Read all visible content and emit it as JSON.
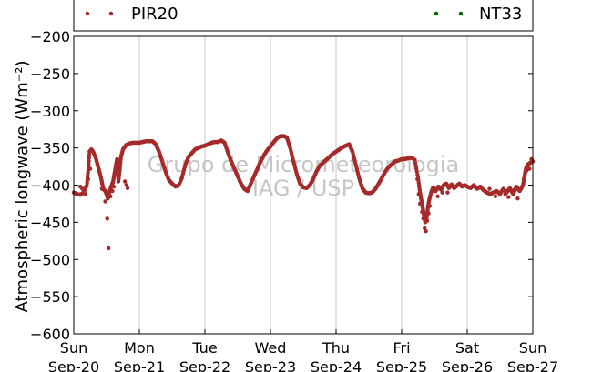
{
  "watermark": {
    "line1": "Grupo de Micrometeorologia",
    "line2": "IAG / USP"
  },
  "chart_data": {
    "type": "scatter",
    "title": "",
    "xlabel": "",
    "ylabel": "Atmospheric longwave (Wm⁻²)",
    "ylim": [
      -600,
      -200
    ],
    "xlim": [
      0,
      7
    ],
    "grid": "vertical",
    "legend_position": "top",
    "y_ticks": [
      {
        "value": -200,
        "label": "−200"
      },
      {
        "value": -250,
        "label": "−250"
      },
      {
        "value": -300,
        "label": "−300"
      },
      {
        "value": -350,
        "label": "−350"
      },
      {
        "value": -400,
        "label": "−400"
      },
      {
        "value": -450,
        "label": "−450"
      },
      {
        "value": -500,
        "label": "−500"
      },
      {
        "value": -550,
        "label": "−550"
      },
      {
        "value": -600,
        "label": "−600"
      }
    ],
    "x_ticks": [
      {
        "value": 0,
        "day": "Sun",
        "date": "Sep-20"
      },
      {
        "value": 1,
        "day": "Mon",
        "date": "Sep-21"
      },
      {
        "value": 2,
        "day": "Tue",
        "date": "Sep-22"
      },
      {
        "value": 3,
        "day": "Wed",
        "date": "Sep-23"
      },
      {
        "value": 4,
        "day": "Thu",
        "date": "Sep-24"
      },
      {
        "value": 5,
        "day": "Fri",
        "date": "Sep-25"
      },
      {
        "value": 6,
        "day": "Sat",
        "date": "Sep-26"
      },
      {
        "value": 7,
        "day": "Sun",
        "date": "Sep-27"
      }
    ],
    "series": [
      {
        "name": "PIR20",
        "color": "#a52a2a",
        "points": [
          [
            0.0,
            -410
          ],
          [
            0.05,
            -412
          ],
          [
            0.1,
            -413
          ],
          [
            0.15,
            -410
          ],
          [
            0.2,
            -400
          ],
          [
            0.22,
            -380
          ],
          [
            0.24,
            -355
          ],
          [
            0.27,
            -352
          ],
          [
            0.3,
            -356
          ],
          [
            0.34,
            -365
          ],
          [
            0.38,
            -378
          ],
          [
            0.42,
            -392
          ],
          [
            0.45,
            -405
          ],
          [
            0.48,
            -408
          ],
          [
            0.5,
            -412
          ],
          [
            0.52,
            -418
          ],
          [
            0.54,
            -410
          ],
          [
            0.56,
            -405
          ],
          [
            0.58,
            -400
          ],
          [
            0.6,
            -395
          ],
          [
            0.62,
            -385
          ],
          [
            0.64,
            -375
          ],
          [
            0.66,
            -365
          ],
          [
            0.68,
            -395
          ],
          [
            0.7,
            -380
          ],
          [
            0.72,
            -362
          ],
          [
            0.75,
            -352
          ],
          [
            0.8,
            -346
          ],
          [
            0.85,
            -344
          ],
          [
            0.9,
            -343
          ],
          [
            0.95,
            -343
          ],
          [
            1.0,
            -343
          ],
          [
            1.05,
            -342
          ],
          [
            1.1,
            -341
          ],
          [
            1.15,
            -341
          ],
          [
            1.2,
            -341
          ],
          [
            1.25,
            -345
          ],
          [
            1.3,
            -355
          ],
          [
            1.35,
            -368
          ],
          [
            1.4,
            -382
          ],
          [
            1.45,
            -393
          ],
          [
            1.5,
            -398
          ],
          [
            1.55,
            -402
          ],
          [
            1.6,
            -400
          ],
          [
            1.65,
            -390
          ],
          [
            1.7,
            -373
          ],
          [
            1.75,
            -362
          ],
          [
            1.8,
            -357
          ],
          [
            1.85,
            -352
          ],
          [
            1.9,
            -350
          ],
          [
            1.95,
            -348
          ],
          [
            2.0,
            -347
          ],
          [
            2.05,
            -345
          ],
          [
            2.1,
            -343
          ],
          [
            2.15,
            -342
          ],
          [
            2.2,
            -342
          ],
          [
            2.25,
            -340
          ],
          [
            2.3,
            -343
          ],
          [
            2.35,
            -356
          ],
          [
            2.4,
            -368
          ],
          [
            2.45,
            -378
          ],
          [
            2.5,
            -388
          ],
          [
            2.55,
            -398
          ],
          [
            2.6,
            -405
          ],
          [
            2.65,
            -408
          ],
          [
            2.7,
            -398
          ],
          [
            2.75,
            -388
          ],
          [
            2.8,
            -378
          ],
          [
            2.85,
            -368
          ],
          [
            2.9,
            -360
          ],
          [
            2.95,
            -353
          ],
          [
            3.0,
            -348
          ],
          [
            3.05,
            -342
          ],
          [
            3.1,
            -337
          ],
          [
            3.15,
            -334
          ],
          [
            3.2,
            -334
          ],
          [
            3.25,
            -336
          ],
          [
            3.3,
            -350
          ],
          [
            3.35,
            -368
          ],
          [
            3.4,
            -385
          ],
          [
            3.45,
            -398
          ],
          [
            3.5,
            -403
          ],
          [
            3.55,
            -404
          ],
          [
            3.6,
            -400
          ],
          [
            3.65,
            -392
          ],
          [
            3.7,
            -382
          ],
          [
            3.75,
            -374
          ],
          [
            3.8,
            -370
          ],
          [
            3.85,
            -366
          ],
          [
            3.9,
            -362
          ],
          [
            3.95,
            -358
          ],
          [
            4.0,
            -355
          ],
          [
            4.05,
            -352
          ],
          [
            4.1,
            -349
          ],
          [
            4.15,
            -347
          ],
          [
            4.2,
            -345
          ],
          [
            4.25,
            -355
          ],
          [
            4.3,
            -372
          ],
          [
            4.35,
            -390
          ],
          [
            4.4,
            -404
          ],
          [
            4.45,
            -410
          ],
          [
            4.5,
            -411
          ],
          [
            4.55,
            -410
          ],
          [
            4.6,
            -405
          ],
          [
            4.65,
            -398
          ],
          [
            4.7,
            -390
          ],
          [
            4.75,
            -382
          ],
          [
            4.8,
            -376
          ],
          [
            4.85,
            -372
          ],
          [
            4.9,
            -368
          ],
          [
            4.95,
            -367
          ],
          [
            5.0,
            -365
          ],
          [
            5.05,
            -365
          ],
          [
            5.1,
            -364
          ],
          [
            5.15,
            -363
          ],
          [
            5.2,
            -366
          ],
          [
            5.25,
            -390
          ],
          [
            5.28,
            -410
          ],
          [
            5.3,
            -420
          ],
          [
            5.32,
            -430
          ],
          [
            5.34,
            -440
          ],
          [
            5.36,
            -450
          ],
          [
            5.38,
            -445
          ],
          [
            5.4,
            -430
          ],
          [
            5.42,
            -420
          ],
          [
            5.45,
            -410
          ],
          [
            5.48,
            -403
          ],
          [
            5.52,
            -408
          ],
          [
            5.56,
            -402
          ],
          [
            5.6,
            -406
          ],
          [
            5.64,
            -400
          ],
          [
            5.68,
            -398
          ],
          [
            5.72,
            -404
          ],
          [
            5.76,
            -399
          ],
          [
            5.8,
            -404
          ],
          [
            5.84,
            -401
          ],
          [
            5.88,
            -398
          ],
          [
            5.92,
            -402
          ],
          [
            5.96,
            -400
          ],
          [
            6.0,
            -402
          ],
          [
            6.05,
            -404
          ],
          [
            6.1,
            -400
          ],
          [
            6.15,
            -405
          ],
          [
            6.2,
            -402
          ],
          [
            6.25,
            -407
          ],
          [
            6.3,
            -410
          ],
          [
            6.35,
            -412
          ],
          [
            6.4,
            -410
          ],
          [
            6.45,
            -408
          ],
          [
            6.5,
            -412
          ],
          [
            6.55,
            -405
          ],
          [
            6.6,
            -410
          ],
          [
            6.65,
            -404
          ],
          [
            6.7,
            -412
          ],
          [
            6.75,
            -402
          ],
          [
            6.8,
            -408
          ],
          [
            6.85,
            -400
          ],
          [
            6.88,
            -385
          ],
          [
            6.9,
            -376
          ],
          [
            6.93,
            -372
          ],
          [
            6.96,
            -370
          ],
          [
            7.0,
            -368
          ]
        ],
        "outliers": [
          [
            0.1,
            -402
          ],
          [
            0.13,
            -405
          ],
          [
            0.18,
            -412
          ],
          [
            0.22,
            -392
          ],
          [
            0.25,
            -378
          ],
          [
            0.43,
            -405
          ],
          [
            0.48,
            -422
          ],
          [
            0.51,
            -445
          ],
          [
            0.53,
            -485
          ],
          [
            0.56,
            -415
          ],
          [
            0.59,
            -408
          ],
          [
            0.61,
            -402
          ],
          [
            0.78,
            -395
          ],
          [
            0.8,
            -400
          ],
          [
            0.82,
            -404
          ],
          [
            5.22,
            -375
          ],
          [
            5.24,
            -392
          ],
          [
            5.26,
            -412
          ],
          [
            5.28,
            -425
          ],
          [
            5.31,
            -436
          ],
          [
            5.33,
            -445
          ],
          [
            5.35,
            -458
          ],
          [
            5.37,
            -462
          ],
          [
            5.39,
            -448
          ],
          [
            5.41,
            -438
          ],
          [
            5.43,
            -428
          ],
          [
            5.55,
            -415
          ],
          [
            5.62,
            -410
          ],
          [
            5.7,
            -410
          ],
          [
            6.34,
            -405
          ],
          [
            6.43,
            -415
          ],
          [
            6.58,
            -412
          ],
          [
            6.63,
            -416
          ],
          [
            6.72,
            -406
          ],
          [
            6.77,
            -418
          ],
          [
            6.83,
            -404
          ],
          [
            6.86,
            -392
          ],
          [
            6.91,
            -380
          ],
          [
            6.95,
            -378
          ],
          [
            6.98,
            -365
          ]
        ]
      },
      {
        "name": "NT33",
        "color": "#006400",
        "points": []
      }
    ]
  }
}
